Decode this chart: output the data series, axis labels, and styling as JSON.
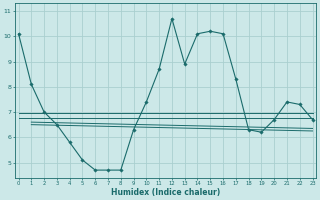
{
  "xlabel": "Humidex (Indice chaleur)",
  "background_color": "#cce8e8",
  "grid_color": "#aacfcf",
  "line_color": "#1a6b6b",
  "main_line": {
    "x": [
      0,
      1,
      2,
      3,
      4,
      5,
      6,
      7,
      8,
      9,
      10,
      11,
      12,
      13,
      14,
      15,
      16,
      17,
      18,
      19,
      20,
      21,
      22,
      23
    ],
    "y": [
      10.1,
      8.1,
      7.0,
      6.5,
      5.8,
      5.1,
      4.7,
      4.7,
      4.7,
      6.3,
      7.4,
      8.7,
      10.7,
      8.9,
      10.1,
      10.2,
      10.1,
      8.3,
      6.3,
      6.2,
      6.7,
      7.4,
      7.3,
      6.7
    ]
  },
  "flat_lines": [
    {
      "x": [
        0,
        23
      ],
      "y": [
        6.95,
        6.95
      ]
    },
    {
      "x": [
        0,
        23
      ],
      "y": [
        6.75,
        6.75
      ]
    },
    {
      "x": [
        1,
        23
      ],
      "y": [
        6.6,
        6.35
      ]
    },
    {
      "x": [
        1,
        23
      ],
      "y": [
        6.5,
        6.25
      ]
    }
  ],
  "xlim": [
    -0.3,
    23.3
  ],
  "ylim": [
    4.4,
    11.3
  ],
  "yticks": [
    5,
    6,
    7,
    8,
    9,
    10,
    11
  ],
  "xticks": [
    0,
    1,
    2,
    3,
    4,
    5,
    6,
    7,
    8,
    9,
    10,
    11,
    12,
    13,
    14,
    15,
    16,
    17,
    18,
    19,
    20,
    21,
    22,
    23
  ]
}
